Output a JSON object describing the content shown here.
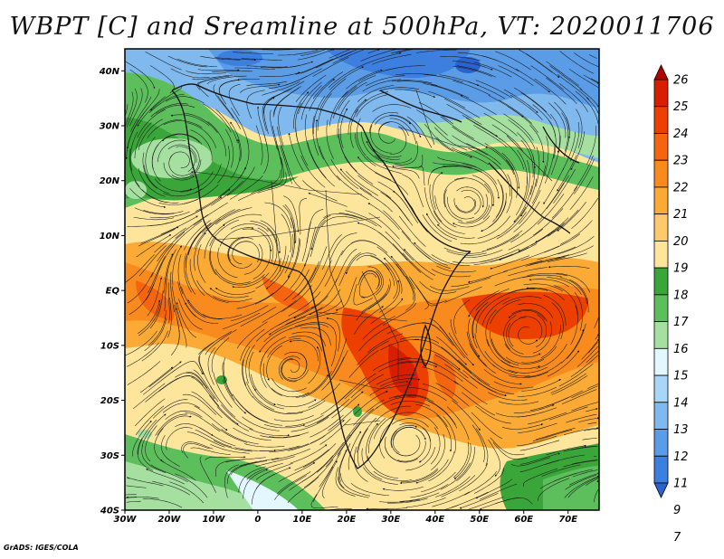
{
  "title": "WBPT [C] and Sreamline at 500hPa, VT: 2020011706",
  "credit": "GrADS: IGES/COLA",
  "map": {
    "lat_ticks": [
      {
        "label": "40N",
        "lat": 40
      },
      {
        "label": "30N",
        "lat": 30
      },
      {
        "label": "20N",
        "lat": 20
      },
      {
        "label": "10N",
        "lat": 10
      },
      {
        "label": "EQ",
        "lat": 0
      },
      {
        "label": "10S",
        "lat": -10
      },
      {
        "label": "20S",
        "lat": -20
      },
      {
        "label": "30S",
        "lat": -30
      },
      {
        "label": "40S",
        "lat": -40
      }
    ],
    "lon_ticks": [
      {
        "label": "30W",
        "lon": -30
      },
      {
        "label": "20W",
        "lon": -20
      },
      {
        "label": "10W",
        "lon": -10
      },
      {
        "label": "0",
        "lon": 0
      },
      {
        "label": "10E",
        "lon": 10
      },
      {
        "label": "20E",
        "lon": 20
      },
      {
        "label": "30E",
        "lon": 30
      },
      {
        "label": "40E",
        "lon": 40
      },
      {
        "label": "50E",
        "lon": 50
      },
      {
        "label": "60E",
        "lon": 60
      },
      {
        "label": "70E",
        "lon": 70
      }
    ],
    "lon_range": [
      -30,
      77
    ],
    "lat_range": [
      -40,
      44
    ]
  },
  "colorbar": {
    "labels": [
      "26",
      "25",
      "24",
      "23",
      "22",
      "21",
      "20",
      "19",
      "18",
      "17",
      "16",
      "15",
      "14",
      "13",
      "12",
      "11",
      "9",
      "7"
    ],
    "colors": [
      "#b30000",
      "#d71e00",
      "#ed4000",
      "#f5650f",
      "#f98b1e",
      "#fbab35",
      "#fcc96d",
      "#fde69c",
      "#3aa63a",
      "#5cbf5c",
      "#a6e0a0",
      "#e3f7ff",
      "#a9d6f7",
      "#7fb9ee",
      "#5a9ce6",
      "#3c7fde",
      "#2a63cf"
    ]
  }
}
